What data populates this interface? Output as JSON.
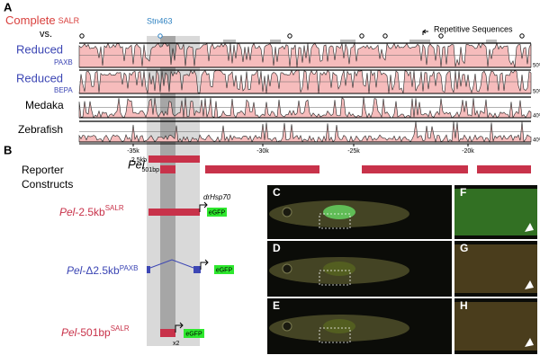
{
  "panel_a": {
    "label": "A",
    "complete": "Complete",
    "complete_sub": "SALR",
    "vs": "vs.",
    "reduced_1": "Reduced",
    "reduced_1_sub": "PAXB",
    "reduced_2": "Reduced",
    "reduced_2_sub": "BEPA",
    "medaka": "Medaka",
    "zebrafish": "Zebrafish",
    "marker": "Stn463",
    "legend": "Repetitive Sequences",
    "track_scales": [
      "50%",
      "50%",
      "40%",
      "40%"
    ],
    "axis_ticks": [
      "-35k",
      "-30k",
      "-25k",
      "-20k"
    ]
  },
  "panel_b": {
    "label": "B",
    "heading": [
      "Reporter",
      "Constructs"
    ],
    "locus": {
      "gene": "Pel",
      "long": "2.5kb",
      "short": "501bp"
    },
    "constructs": [
      {
        "gene": "Pel",
        "name": "-2.5kb",
        "sup": "SALR",
        "promoter": "drHsp70",
        "reporter": "eGFP"
      },
      {
        "gene": "Pel",
        "name": "-Δ2.5kb",
        "sup": "PAXB",
        "reporter": "eGFP"
      },
      {
        "gene": "Pel",
        "name": "-501bp",
        "sup": "SALR",
        "reporter": "eGFP",
        "copies": "x2"
      }
    ]
  },
  "images": [
    "C",
    "D",
    "E",
    "F",
    "G",
    "H"
  ]
}
